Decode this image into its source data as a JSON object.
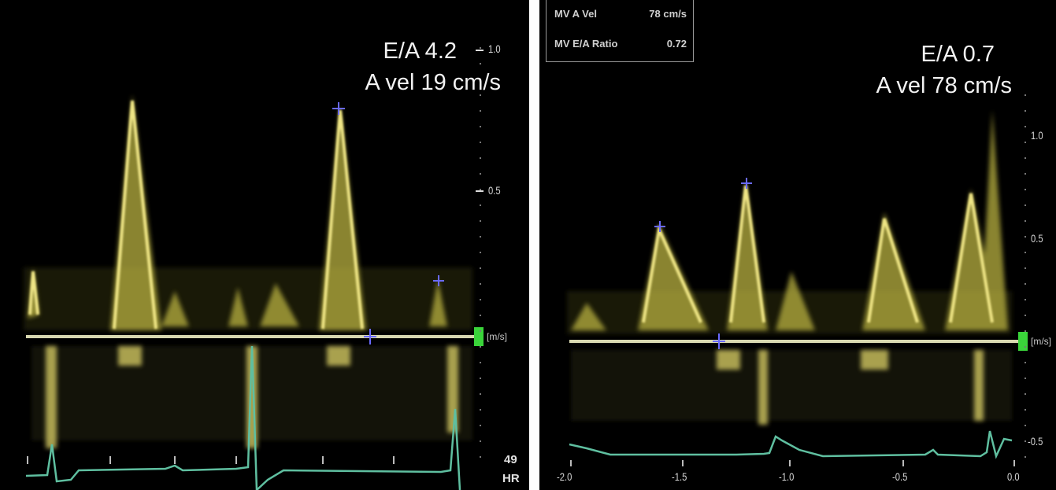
{
  "left_panel": {
    "ratio_label": "E/A 4.2",
    "a_vel_label": "A vel 19 cm/s",
    "axis_ticks": [
      "1.0",
      "0.5"
    ],
    "unit_label": "[m/s]",
    "hr_value": "49",
    "hr_unit": "HR"
  },
  "right_panel": {
    "measurements": [
      {
        "label": "MV A Vel",
        "value": "78 cm/s"
      },
      {
        "label": "MV E/A Ratio",
        "value": "0.72"
      }
    ],
    "ratio_label": "E/A 0.7",
    "a_vel_label": "A vel 78 cm/s",
    "axis_ticks": [
      "1.0",
      "0.5",
      "-0.5"
    ],
    "unit_label": "[m/s]",
    "time_ticks": [
      "-2.0",
      "-1.5",
      "-1.0",
      "-0.5",
      "0.0"
    ]
  },
  "colors": {
    "doppler": "#e8e070",
    "baseline": "#d8d8b0",
    "ecg": "#5fbfa0",
    "marker": "#6a6aff",
    "green_tab": "#3ad43a"
  }
}
